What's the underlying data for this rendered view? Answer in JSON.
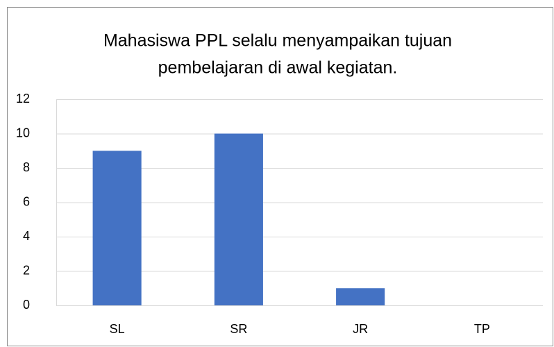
{
  "chart_data": {
    "type": "bar",
    "title": [
      "Mahasiswa PPL selalu menyampaikan tujuan",
      "pembelajaran di awal kegiatan."
    ],
    "categories": [
      "SL",
      "SR",
      "JR",
      "TP"
    ],
    "values": [
      9,
      10,
      1,
      0
    ],
    "color": "#4472c4",
    "ylim": [
      0,
      12
    ],
    "yticks": [
      0,
      2,
      4,
      6,
      8,
      10,
      12
    ],
    "grid": true
  }
}
